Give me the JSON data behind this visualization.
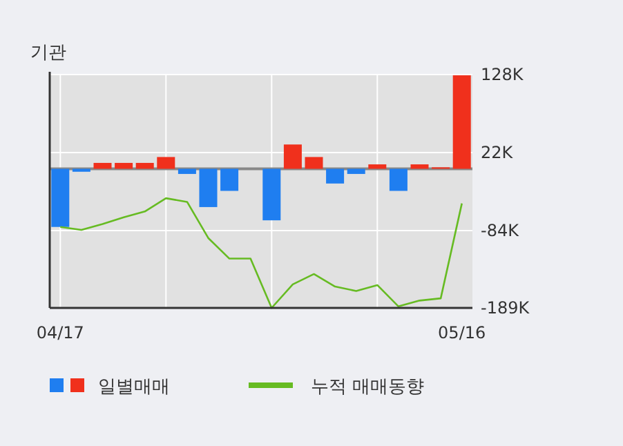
{
  "chart_data": {
    "type": "bar",
    "title": "기관",
    "categories": [
      "04/17",
      null,
      null,
      null,
      null,
      null,
      null,
      null,
      null,
      null,
      null,
      null,
      null,
      null,
      null,
      null,
      null,
      null,
      null,
      "05/16"
    ],
    "series": [
      {
        "name": "일별매매",
        "colors": [
          "#1f7ef0",
          "#1f7ef0",
          "#f0301c",
          "#f0301c",
          "#f0301c",
          "#f0301c",
          "#1f7ef0",
          "#1f7ef0",
          "#1f7ef0",
          "#1f7ef0",
          "#1f7ef0",
          "#f0301c",
          "#f0301c",
          "#1f7ef0",
          "#1f7ef0",
          "#f0301c",
          "#1f7ef0",
          "#f0301c",
          "#f0301c",
          "#f0301c"
        ],
        "values": [
          -79,
          -4,
          8,
          8,
          8,
          16,
          -7,
          -52,
          -30,
          0,
          -70,
          33,
          16,
          -20,
          -7,
          6,
          -30,
          6,
          2,
          127
        ]
      },
      {
        "name": "누적 매매동향",
        "type": "line",
        "color": "#66bb22",
        "values": [
          -79,
          -83,
          -75,
          -66,
          -58,
          -40,
          -45,
          -94,
          -122,
          -122,
          -189,
          -157,
          -143,
          -160,
          -166,
          -158,
          -187,
          -179,
          -176,
          -47
        ]
      }
    ],
    "ylim": [
      -189,
      128
    ],
    "yticks": [
      {
        "value": 128,
        "label": "128K"
      },
      {
        "value": 22,
        "label": "22K"
      },
      {
        "value": -84,
        "label": "-84K"
      },
      {
        "value": -189,
        "label": "-189K"
      }
    ],
    "ref_lines": [
      {
        "axis": "y",
        "value": 0,
        "label": null,
        "color": "#888888"
      }
    ],
    "grid": true,
    "legend": "bottom"
  }
}
